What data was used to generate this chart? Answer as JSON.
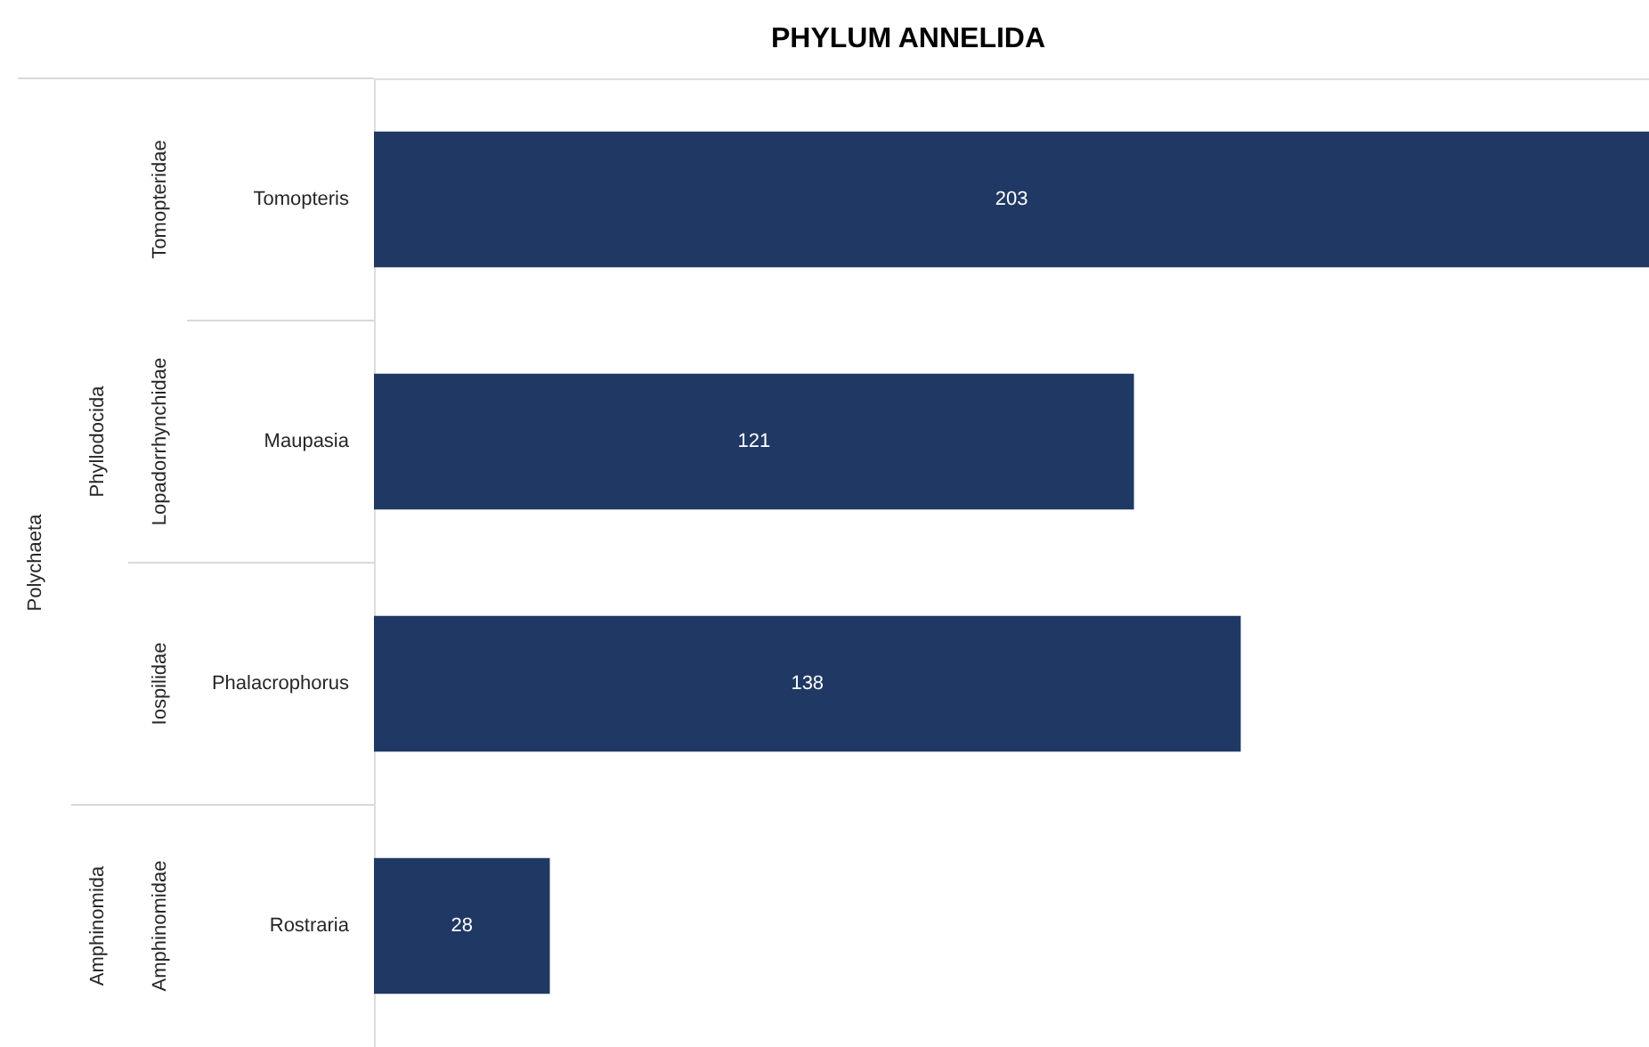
{
  "chart_data": {
    "type": "bar",
    "orientation": "horizontal",
    "title": "PHYLUM ANNELIDA",
    "categories": [
      "Tomopteris",
      "Maupasia",
      "Phalacrophorus",
      "Rostraria"
    ],
    "values": [
      203,
      121,
      138,
      28
    ],
    "color": "#203864",
    "data_labels": true,
    "annotations": [
      "Polychaeta",
      "Phyllodocida",
      "Amphinomida",
      "Tomopteridae",
      "Lopadorrhynchidae",
      "Iospilidae",
      "Amphinomidae"
    ]
  }
}
